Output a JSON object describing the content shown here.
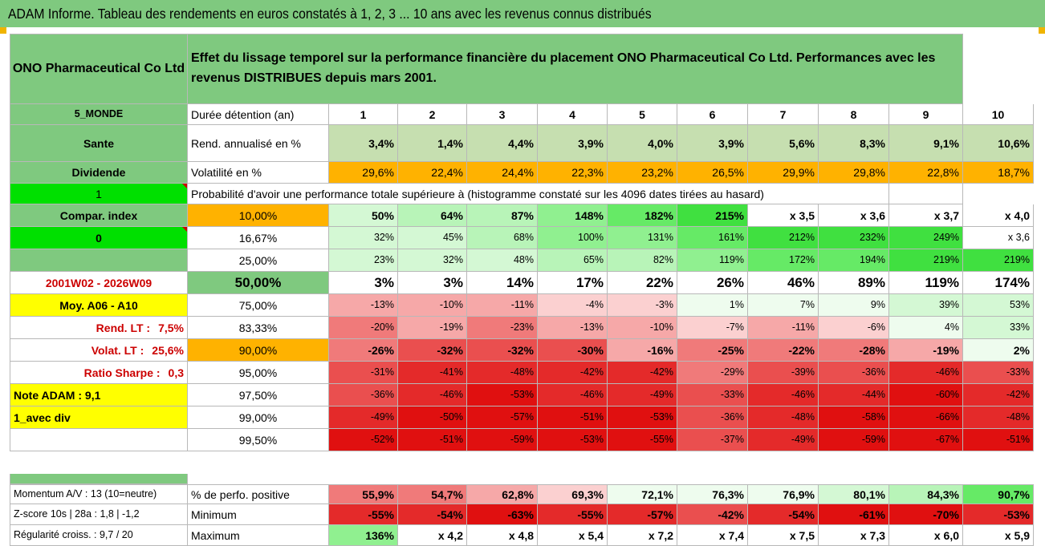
{
  "title": "ADAM Informe. Tableau des rendements en euros constatés à 1, 2, 3 ... 10 ans avec les revenus connus distribués",
  "company": "ONO Pharmaceutical Co Ltd",
  "description": "Effet du lissage temporel sur la performance financière du placement ONO Pharmaceutical Co Ltd. Performances avec les revenus DISTRIBUES depuis mars 2001.",
  "colors": {
    "green_header": "#7fc97f",
    "green_bright": "#00e000",
    "orange": "#ffb200",
    "yellow": "#ffff00",
    "red_text": "#cc0000"
  },
  "durations": [
    "1",
    "2",
    "3",
    "4",
    "5",
    "6",
    "7",
    "8",
    "9",
    "10"
  ],
  "left": {
    "universe": "5_MONDE",
    "sector": "Sante",
    "type": "Dividende",
    "one": "1",
    "compar_label": "Compar. index",
    "zero": "0",
    "period": "2001W02 - 2026W09",
    "moy": "Moy. A06 - A10",
    "rend_lt_label": "Rend. LT :",
    "rend_lt_value": "7,5%",
    "volat_lt_label": "Volat. LT :",
    "volat_lt_value": "25,6%",
    "sharpe_label": "Ratio Sharpe :",
    "sharpe_value": "0,3",
    "note": "Note ADAM : 9,1",
    "div_mode": "1_avec div",
    "momentum": "Momentum A/V : 13 (10=neutre)",
    "zscore": "Z-score 10s | 28a : 1,8 | -1,2",
    "regularite": "Régularité croiss. : 9,7 / 20"
  },
  "rows": {
    "duree_label": "Durée détention (an)",
    "rend_label": "Rend. annualisé en %",
    "rend_values": [
      "3,4%",
      "1,4%",
      "4,4%",
      "3,9%",
      "4,0%",
      "3,9%",
      "5,6%",
      "8,3%",
      "9,1%",
      "10,6%"
    ],
    "vol_label": "Volatilité en %",
    "vol_values": [
      "29,6%",
      "22,4%",
      "24,4%",
      "22,3%",
      "23,2%",
      "26,5%",
      "29,9%",
      "29,8%",
      "22,8%",
      "18,7%"
    ],
    "proba_label": "Probabilité d'avoir une performance totale supérieure à (histogramme constaté sur les 4096 dates tirées au hasard)"
  },
  "quantiles": [
    {
      "label": "10,00%",
      "values": [
        "50%",
        "64%",
        "87%",
        "148%",
        "182%",
        "215%",
        "x 3,5",
        "x 3,6",
        "x 3,7",
        "x 4,0"
      ]
    },
    {
      "label": "16,67%",
      "values": [
        "32%",
        "45%",
        "68%",
        "100%",
        "131%",
        "161%",
        "212%",
        "232%",
        "249%",
        "x 3,6"
      ]
    },
    {
      "label": "25,00%",
      "values": [
        "23%",
        "32%",
        "48%",
        "65%",
        "82%",
        "119%",
        "172%",
        "194%",
        "219%",
        "219%"
      ]
    },
    {
      "label": "50,00%",
      "values": [
        "3%",
        "3%",
        "14%",
        "17%",
        "22%",
        "26%",
        "46%",
        "89%",
        "119%",
        "174%"
      ]
    },
    {
      "label": "75,00%",
      "values": [
        "-13%",
        "-10%",
        "-11%",
        "-4%",
        "-3%",
        "1%",
        "7%",
        "9%",
        "39%",
        "53%"
      ]
    },
    {
      "label": "83,33%",
      "values": [
        "-20%",
        "-19%",
        "-23%",
        "-13%",
        "-10%",
        "-7%",
        "-11%",
        "-6%",
        "4%",
        "33%"
      ]
    },
    {
      "label": "90,00%",
      "values": [
        "-26%",
        "-32%",
        "-32%",
        "-30%",
        "-16%",
        "-25%",
        "-22%",
        "-28%",
        "-19%",
        "2%"
      ]
    },
    {
      "label": "95,00%",
      "values": [
        "-31%",
        "-41%",
        "-48%",
        "-42%",
        "-42%",
        "-29%",
        "-39%",
        "-36%",
        "-46%",
        "-33%"
      ]
    },
    {
      "label": "97,50%",
      "values": [
        "-36%",
        "-46%",
        "-53%",
        "-46%",
        "-49%",
        "-33%",
        "-46%",
        "-44%",
        "-60%",
        "-42%"
      ]
    },
    {
      "label": "99,00%",
      "values": [
        "-49%",
        "-50%",
        "-57%",
        "-51%",
        "-53%",
        "-36%",
        "-48%",
        "-58%",
        "-66%",
        "-48%"
      ]
    },
    {
      "label": "99,50%",
      "values": [
        "-52%",
        "-51%",
        "-59%",
        "-53%",
        "-55%",
        "-37%",
        "-49%",
        "-59%",
        "-67%",
        "-51%"
      ]
    }
  ],
  "stats": [
    {
      "label": "% de perfo. positive",
      "values": [
        "55,9%",
        "54,7%",
        "62,8%",
        "69,3%",
        "72,1%",
        "76,3%",
        "76,9%",
        "80,1%",
        "84,3%",
        "90,7%"
      ]
    },
    {
      "label": "Minimum",
      "values": [
        "-55%",
        "-54%",
        "-63%",
        "-55%",
        "-57%",
        "-42%",
        "-54%",
        "-61%",
        "-70%",
        "-53%"
      ]
    },
    {
      "label": "Maximum",
      "values": [
        "136%",
        "x 4,2",
        "x 4,8",
        "x 5,4",
        "x 7,2",
        "x 7,4",
        "x 7,5",
        "x 7,3",
        "x 6,0",
        "x 5,9"
      ]
    }
  ]
}
